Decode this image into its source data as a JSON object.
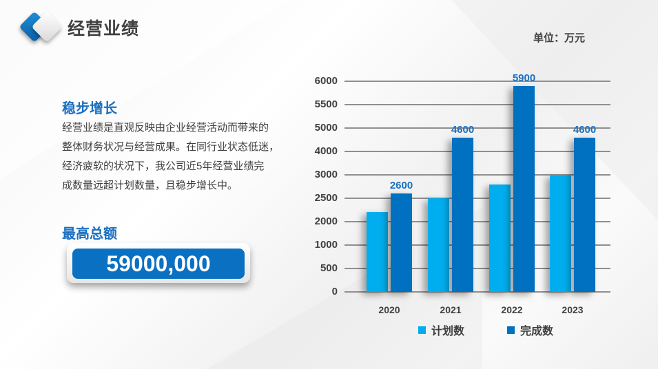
{
  "header": {
    "title": "经营业绩",
    "unit_label": "单位：万元"
  },
  "left_panel": {
    "section1_title": "稳步增长",
    "description_lines": [
      "经营业绩是直观反映由企业经营活动而带来的",
      "整体财务状况与经营成果。在同行业状态低迷，",
      "经济疲软的状况下，我公司近5年经营业绩完",
      "成数量远超计划数量，且稳步增长中。"
    ],
    "section2_title": "最高总额",
    "total_value": "59000,000"
  },
  "colors": {
    "plan": "#00aeef",
    "done": "#0070c0",
    "accent_text": "#1a6fc0"
  },
  "chart_data": {
    "type": "bar",
    "title": "",
    "unit": "万元",
    "categories": [
      "2020",
      "2021",
      "2022",
      "2023"
    ],
    "series": [
      {
        "name": "计划数",
        "values": [
          2200,
          2500,
          2800,
          3000
        ],
        "color": "#00aeef"
      },
      {
        "name": "完成数",
        "values": [
          2600,
          4600,
          5900,
          4600
        ],
        "color": "#0070c0",
        "data_labels": [
          "2600",
          "4600",
          "5900",
          "4600"
        ]
      }
    ],
    "y_ticks": [
      "0",
      "500",
      "1000",
      "2000",
      "2500",
      "3000",
      "4000",
      "5000",
      "5500",
      "6000"
    ],
    "ylim": [
      0,
      6000
    ],
    "grid": true,
    "legend_position": "bottom",
    "xlabel": "",
    "ylabel": ""
  }
}
